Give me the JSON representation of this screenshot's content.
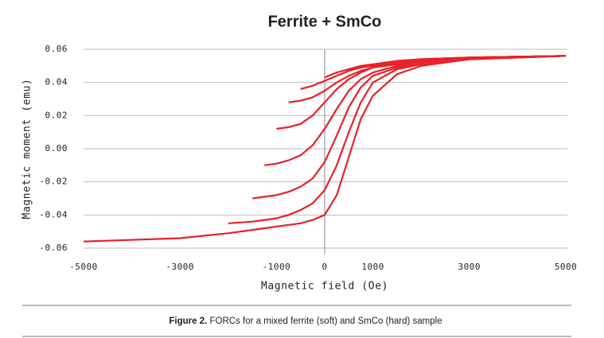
{
  "chart_data": {
    "type": "line",
    "title": "Ferrite + SmCo",
    "x_label": "Magnetic field (Oe)",
    "y_label": "Magnetic moment (emu)",
    "x": [
      -5000,
      -3000,
      -2000,
      -1500,
      -1250,
      -1000,
      -750,
      -500,
      -250,
      0,
      250,
      500,
      750,
      1000,
      1500,
      2000,
      3000,
      5000
    ],
    "series": [
      {
        "color": "#e8202a",
        "values": [
          -0.056,
          -0.054,
          -0.051,
          -0.049,
          -0.048,
          -0.047,
          -0.046,
          -0.045,
          -0.043,
          -0.04,
          -0.028,
          -0.005,
          0.018,
          0.032,
          0.045,
          0.05,
          0.054,
          0.056
        ]
      },
      {
        "color": "#e8202a",
        "values": [
          null,
          null,
          -0.045,
          -0.044,
          -0.043,
          -0.042,
          -0.04,
          -0.037,
          -0.033,
          -0.025,
          -0.01,
          0.01,
          0.028,
          0.04,
          0.048,
          0.051,
          0.054,
          0.056
        ]
      },
      {
        "color": "#e8202a",
        "values": [
          null,
          null,
          null,
          -0.03,
          -0.029,
          -0.028,
          -0.026,
          -0.023,
          -0.018,
          -0.008,
          0.008,
          0.025,
          0.037,
          0.044,
          0.049,
          0.052,
          0.055,
          0.056
        ]
      },
      {
        "color": "#e8202a",
        "values": [
          null,
          null,
          null,
          null,
          -0.01,
          -0.009,
          -0.007,
          -0.004,
          0.002,
          0.012,
          0.024,
          0.035,
          0.042,
          0.046,
          0.05,
          0.053,
          0.055,
          0.056
        ]
      },
      {
        "color": "#e8202a",
        "values": [
          null,
          null,
          null,
          null,
          null,
          0.012,
          0.013,
          0.015,
          0.02,
          0.028,
          0.036,
          0.042,
          0.046,
          0.049,
          0.051,
          0.053,
          0.055,
          0.056
        ]
      },
      {
        "color": "#e8202a",
        "values": [
          null,
          null,
          null,
          null,
          null,
          null,
          0.028,
          0.029,
          0.031,
          0.035,
          0.04,
          0.044,
          0.047,
          0.049,
          0.052,
          0.054,
          0.055,
          0.056
        ]
      },
      {
        "color": "#e8202a",
        "values": [
          null,
          null,
          null,
          null,
          null,
          null,
          null,
          0.036,
          0.038,
          0.041,
          0.044,
          0.047,
          0.049,
          0.05,
          0.053,
          0.054,
          0.055,
          0.056
        ]
      },
      {
        "color": "#e8202a",
        "values": [
          null,
          null,
          null,
          null,
          null,
          null,
          null,
          null,
          null,
          0.043,
          0.046,
          0.048,
          0.05,
          0.051,
          0.053,
          0.054,
          0.055,
          0.056
        ]
      }
    ],
    "xlim": [
      -5000,
      5000
    ],
    "xticks": [
      -5000,
      -3000,
      -1000,
      0,
      1000,
      3000,
      5000
    ],
    "ylim": [
      -0.06,
      0.06
    ],
    "yticks": [
      -0.06,
      -0.04,
      -0.02,
      {
        "value": 0,
        "label": "0.00"
      },
      0.02,
      0.04,
      0.06
    ],
    "grid": true
  },
  "caption": {
    "label": "Figure 2.",
    "text": "FORCs for a mixed ferrite (soft) and SmCo (hard) sample"
  }
}
